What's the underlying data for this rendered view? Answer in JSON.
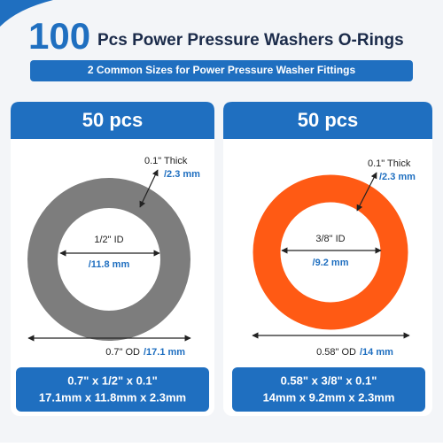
{
  "header": {
    "count": "100",
    "title": "Pcs Power Pressure Washers O-Rings",
    "subtitle": "2 Common Sizes for Power Pressure Washer Fittings"
  },
  "panels": [
    {
      "quantity": "50 pcs",
      "thick": "0.1\" Thick",
      "thick_mm": "/2.3 mm",
      "id": "1/2\" ID",
      "id_mm": "/11.8 mm",
      "od": "0.7\" OD",
      "od_mm": "/17.1 mm",
      "size_in": "0.7\" x 1/2\" x 0.1\"",
      "size_mm": "17.1mm x 11.8mm x 2.3mm"
    },
    {
      "quantity": "50 pcs",
      "thick": "0.1\" Thick",
      "thick_mm": "/2.3 mm",
      "id": "3/8\" ID",
      "id_mm": "/9.2 mm",
      "od": "0.58\" OD",
      "od_mm": "/14 mm",
      "size_in": "0.58\" x 3/8\" x 0.1\"",
      "size_mm": "14mm x 9.2mm x 2.3mm"
    }
  ]
}
